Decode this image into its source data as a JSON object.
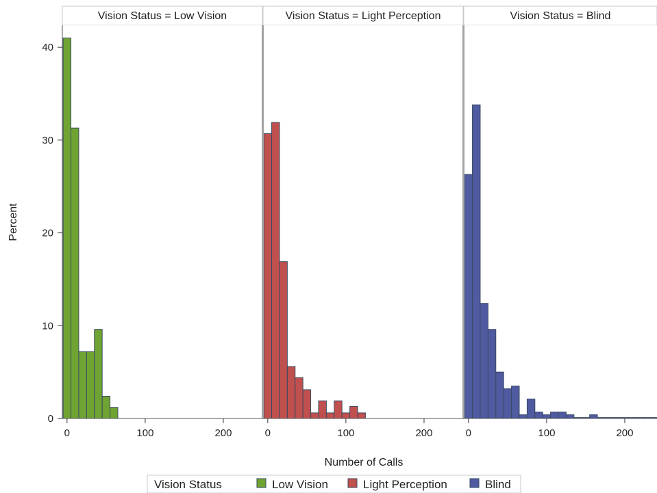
{
  "chart_data": {
    "type": "bar",
    "subtype": "histogram-panel",
    "xlabel": "Number of Calls",
    "ylabel": "Percent",
    "ylim": [
      0,
      42
    ],
    "xlim": [
      -6,
      250
    ],
    "bin_width": 10,
    "y_ticks": [
      0,
      10,
      20,
      30,
      40
    ],
    "x_ticks": [
      0,
      100,
      200
    ],
    "grid": false,
    "legend": {
      "title": "Vision Status",
      "placement": "bottom-center",
      "entries": [
        {
          "name": "Low Vision",
          "color": "#6fa332"
        },
        {
          "name": "Light Perception",
          "color": "#c0504d"
        },
        {
          "name": "Blind",
          "color": "#4f5aa0"
        }
      ]
    },
    "panels": [
      {
        "title": "Vision Status = Low Vision",
        "name": "Low Vision",
        "color": "#6fa332",
        "bins": [
          0,
          10,
          20,
          30,
          40,
          50,
          60
        ],
        "values": [
          41.0,
          31.3,
          7.2,
          7.2,
          9.6,
          2.4,
          1.2
        ]
      },
      {
        "title": "Vision Status = Light Perception",
        "name": "Light Perception",
        "color": "#c0504d",
        "bins": [
          0,
          10,
          20,
          30,
          40,
          50,
          60,
          70,
          80,
          90,
          100,
          110,
          120
        ],
        "values": [
          30.7,
          31.9,
          16.9,
          5.6,
          4.4,
          3.1,
          0.6,
          1.9,
          0.6,
          1.9,
          0.6,
          1.3,
          0.6
        ]
      },
      {
        "title": "Vision Status = Blind",
        "name": "Blind",
        "color": "#4f5aa0",
        "bins": [
          0,
          10,
          20,
          30,
          40,
          50,
          60,
          70,
          80,
          90,
          100,
          110,
          120,
          130,
          140,
          150,
          160,
          170,
          180,
          190,
          200,
          210,
          220,
          230,
          240,
          250
        ],
        "values": [
          26.3,
          33.8,
          12.4,
          9.6,
          5.0,
          3.2,
          3.5,
          0.4,
          2.1,
          0.7,
          0.4,
          0.7,
          0.7,
          0.4,
          0.1,
          0.1,
          0.4,
          0.1,
          0.1,
          0.1,
          0.1,
          0.1,
          0.1,
          0.1,
          0.1,
          0.4
        ]
      }
    ]
  }
}
